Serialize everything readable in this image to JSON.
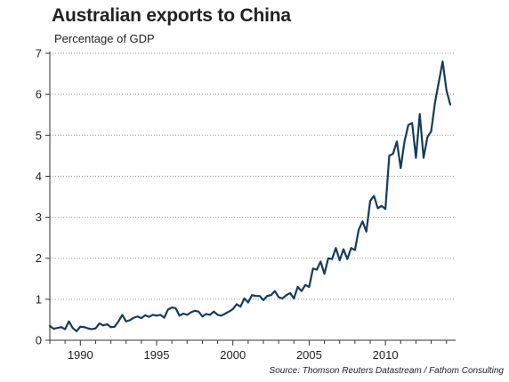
{
  "chart_data": {
    "type": "line",
    "title": "Australian exports to China",
    "subtitle": "Percentage of GDP",
    "xlabel": "",
    "ylabel": "",
    "source": "Source: Thomson Reuters Datastream / Fathom Consulting",
    "xlim": [
      1988,
      2014.6
    ],
    "ylim": [
      0,
      7
    ],
    "x_ticks": [
      1990,
      1995,
      2000,
      2005,
      2010
    ],
    "y_ticks": [
      0,
      1,
      2,
      3,
      4,
      5,
      6,
      7
    ],
    "grid": "horizontal dotted",
    "line_color": "#163a5f",
    "series": [
      {
        "x": [
          1988.0,
          1988.25,
          1988.5,
          1988.75,
          1989.0,
          1989.25,
          1989.5,
          1989.75,
          1990.0,
          1990.25,
          1990.5,
          1990.75,
          1991.0,
          1991.25,
          1991.5,
          1991.75,
          1992.0,
          1992.25,
          1992.5,
          1992.75,
          1993.0,
          1993.25,
          1993.5,
          1993.75,
          1994.0,
          1994.25,
          1994.5,
          1994.75,
          1995.0,
          1995.25,
          1995.5,
          1995.75,
          1996.0,
          1996.25,
          1996.5,
          1996.75,
          1997.0,
          1997.25,
          1997.5,
          1997.75,
          1998.0,
          1998.25,
          1998.5,
          1998.75,
          1999.0,
          1999.25,
          1999.5,
          1999.75,
          2000.0,
          2000.25,
          2000.5,
          2000.75,
          2001.0,
          2001.25,
          2001.5,
          2001.75,
          2002.0,
          2002.25,
          2002.5,
          2002.75,
          2003.0,
          2003.25,
          2003.5,
          2003.75,
          2004.0,
          2004.25,
          2004.5,
          2004.75,
          2005.0,
          2005.25,
          2005.5,
          2005.75,
          2006.0,
          2006.25,
          2006.5,
          2006.75,
          2007.0,
          2007.25,
          2007.5,
          2007.75,
          2008.0,
          2008.25,
          2008.5,
          2008.75,
          2009.0,
          2009.25,
          2009.5,
          2009.75,
          2010.0,
          2010.25,
          2010.5,
          2010.75,
          2011.0,
          2011.25,
          2011.5,
          2011.75,
          2012.0,
          2012.25,
          2012.5,
          2012.75,
          2013.0,
          2013.25,
          2013.5,
          2013.75,
          2014.0,
          2014.25
        ],
        "values": [
          0.35,
          0.28,
          0.3,
          0.32,
          0.27,
          0.46,
          0.3,
          0.22,
          0.33,
          0.32,
          0.29,
          0.27,
          0.29,
          0.41,
          0.36,
          0.39,
          0.32,
          0.33,
          0.46,
          0.62,
          0.46,
          0.49,
          0.55,
          0.58,
          0.54,
          0.61,
          0.57,
          0.62,
          0.6,
          0.62,
          0.55,
          0.75,
          0.8,
          0.78,
          0.6,
          0.65,
          0.62,
          0.68,
          0.72,
          0.7,
          0.58,
          0.64,
          0.62,
          0.7,
          0.62,
          0.6,
          0.65,
          0.7,
          0.76,
          0.88,
          0.82,
          1.02,
          0.92,
          1.1,
          1.08,
          1.08,
          0.98,
          1.08,
          1.1,
          1.2,
          1.05,
          1.02,
          1.1,
          1.15,
          1.02,
          1.3,
          1.2,
          1.35,
          1.3,
          1.75,
          1.72,
          1.92,
          1.62,
          2.0,
          1.98,
          2.25,
          1.95,
          2.22,
          1.98,
          2.25,
          2.2,
          2.7,
          2.9,
          2.65,
          3.4,
          3.52,
          3.22,
          3.28,
          3.2,
          4.5,
          4.55,
          4.85,
          4.2,
          4.85,
          5.25,
          5.3,
          4.45,
          5.52,
          4.45,
          4.95,
          5.1,
          5.8,
          6.3,
          6.8,
          6.1,
          5.75
        ]
      }
    ]
  }
}
